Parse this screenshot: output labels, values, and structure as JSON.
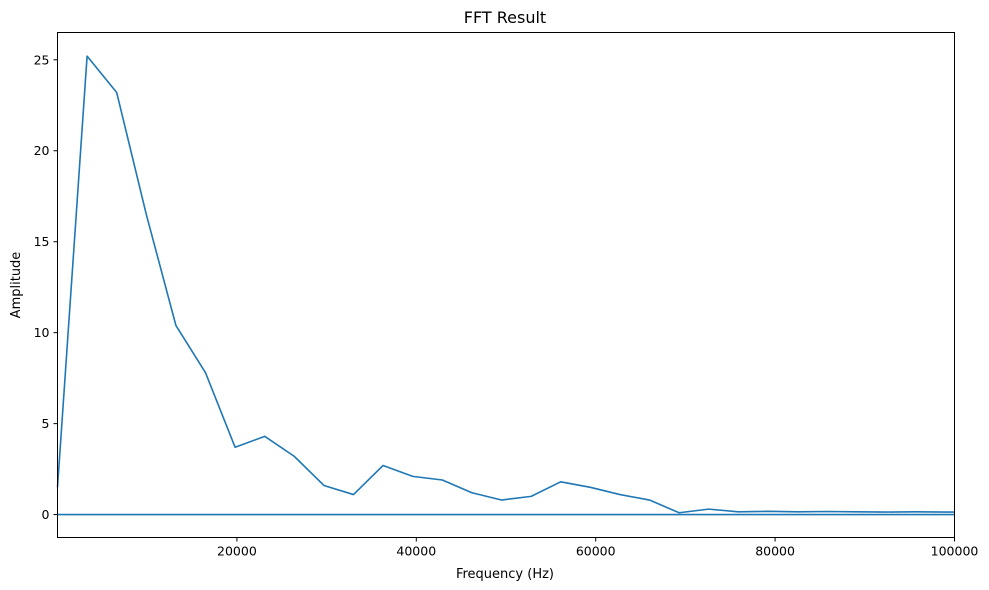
{
  "chart_data": {
    "type": "line",
    "title": "FFT Result",
    "xlabel": "Frequency (Hz)",
    "ylabel": "Amplitude",
    "xlim": [
      0,
      100000
    ],
    "ylim": [
      -1.26,
      26.5
    ],
    "grid": false,
    "legend": "none",
    "x_ticks": [
      20000,
      40000,
      60000,
      80000,
      100000
    ],
    "x_tick_labels": [
      "20000",
      "40000",
      "60000",
      "80000",
      "100000"
    ],
    "y_ticks": [
      0,
      5,
      10,
      15,
      20,
      25
    ],
    "y_tick_labels": [
      "0",
      "5",
      "10",
      "15",
      "20",
      "25"
    ],
    "series": [
      {
        "color": "#1f77b4",
        "x": [
          0,
          3300,
          6600,
          9900,
          13200,
          16500,
          19800,
          23100,
          26400,
          29700,
          33000,
          36300,
          39600,
          42900,
          46200,
          49500,
          52800,
          56100,
          59400,
          62700,
          66000,
          69300,
          72600,
          75900,
          79200,
          82500,
          85800,
          89100,
          92400,
          95700,
          99000,
          100000
        ],
        "values": [
          1.5,
          25.2,
          23.2,
          16.5,
          10.4,
          7.8,
          3.7,
          4.3,
          3.2,
          1.6,
          1.1,
          2.7,
          2.1,
          1.9,
          1.2,
          0.8,
          1.0,
          1.8,
          1.5,
          1.1,
          0.8,
          0.1,
          0.3,
          0.15,
          0.18,
          0.15,
          0.17,
          0.15,
          0.14,
          0.15,
          0.14,
          0.14
        ]
      },
      {
        "color": "#1f77b4",
        "x": [
          0,
          100000
        ],
        "values": [
          0,
          0
        ]
      }
    ]
  }
}
